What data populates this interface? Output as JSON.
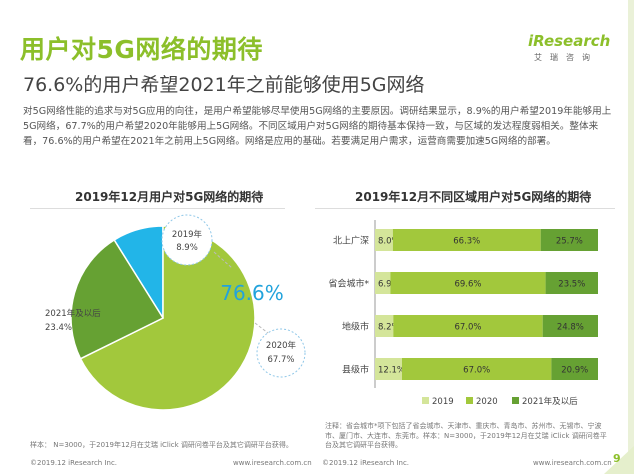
{
  "header": {
    "title": "用户对5G网络的期待",
    "subtitle": "76.6%的用户希望2021年之前能够使用5G网络",
    "logo_text": "iResearch",
    "logo_sub": "艾瑞咨询"
  },
  "description": "对5G网络性能的追求与对5G应用的向往，是用户希望能够尽早使用5G网络的主要原因。调研结果显示，8.9%的用户希望2019年能够用上5G网络，67.7%的用户希望2020年能够用上5G网络。不同区域用户对5G网络的期待基本保持一致，与区域的发达程度弱相关。整体来看，76.6%的用户希望在2021年之前用上5G网络。网络是应用的基础。若要满足用户需求，运营商需要加速5G网络的部署。",
  "chart_data": [
    {
      "type": "pie",
      "title": "2019年12月用户对5G网络的期待",
      "slices": [
        {
          "label": "2019年",
          "value": 8.9,
          "value_label": "8.9%",
          "color": "#22b5e8"
        },
        {
          "label": "2020年",
          "value": 67.7,
          "value_label": "67.7%",
          "color": "#a2c83c"
        },
        {
          "label": "2021年及以后",
          "value": 23.4,
          "value_label": "23.4%",
          "color": "#66a133"
        }
      ],
      "annotation": "76.6%"
    },
    {
      "type": "bar",
      "stacked": true,
      "orientation": "horizontal",
      "title": "2019年12月不同区域用户对5G网络的期待",
      "categories": [
        "北上广深",
        "省会城市*",
        "地级市",
        "县级市"
      ],
      "series": [
        {
          "name": "2019",
          "values": [
            8.0,
            6.9,
            8.2,
            12.1
          ],
          "labels": [
            "8.0%",
            "6.9%",
            "8.2%",
            "12.1%"
          ],
          "color": "#d4e59a"
        },
        {
          "name": "2020",
          "values": [
            66.3,
            69.6,
            67.0,
            67.0
          ],
          "labels": [
            "66.3%",
            "69.6%",
            "67.0%",
            "67.0%"
          ],
          "color": "#a2c83c"
        },
        {
          "name": "2021年及以后",
          "values": [
            25.7,
            23.5,
            24.8,
            20.9
          ],
          "labels": [
            "25.7%",
            "23.5%",
            "24.8%",
            "20.9%"
          ],
          "color": "#66a133"
        }
      ]
    }
  ],
  "footer": {
    "sample_left": "样本： N=3000，于2019年12月在艾瑞 iClick 调研问卷平台及其它调研平台获得。",
    "note_right": "注释：省会城市*项下包括了省会城市、天津市、重庆市、青岛市、苏州市、无锡市、宁波市、厦门市、大连市、东莞市。样本：N=3000，于2019年12月在艾瑞 iClick 调研问卷平台及其它调研平台获得。",
    "copyright_left": "©2019.12 iResearch Inc.",
    "website_left": "www.iresearch.com.cn",
    "copyright_right": "©2019.12 iResearch Inc.",
    "website_right": "www.iresearch.com.cn",
    "page_number": "9"
  }
}
